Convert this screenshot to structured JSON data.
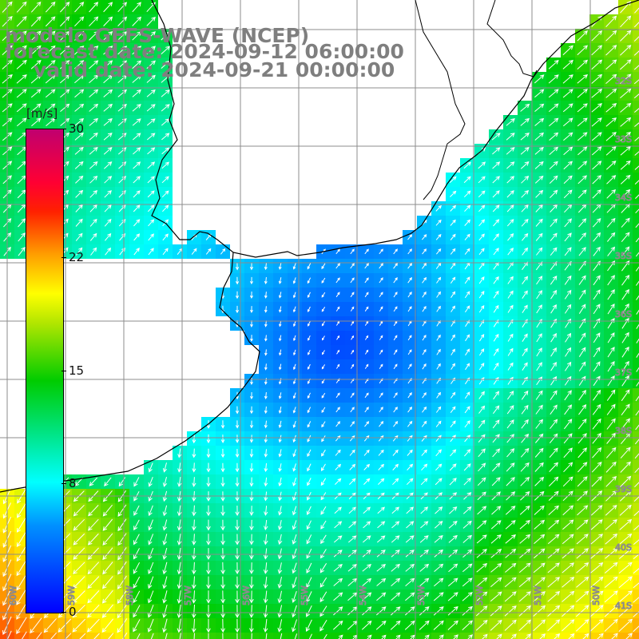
{
  "header": {
    "line1": "modelo GEFS-WAVE (NCEP)",
    "line2": "forecast date: 2024-09-12 06:00:00",
    "line3": "valid date: 2024-09-21 00:00:00"
  },
  "colorbar": {
    "unit": "[m/s]",
    "ticks": [
      "30",
      "22",
      "15",
      "8",
      "0"
    ],
    "tick_values": [
      30,
      22,
      15,
      8,
      0
    ]
  },
  "axes": {
    "lon_labels": [
      "60W",
      "59W",
      "58W",
      "57W",
      "56W",
      "55W",
      "54W",
      "53W",
      "52W",
      "51W",
      "50W"
    ],
    "lat_labels": [
      "32S",
      "33S",
      "34S",
      "35S",
      "36S",
      "37S",
      "38S",
      "39S",
      "40S",
      "41S"
    ]
  },
  "colors": {
    "land": "#ffffff",
    "grid": "#8c8c8c",
    "coast": "#000000",
    "vectors": "#ffffff",
    "title": "#7f7f7f",
    "palette": [
      "#0000ff",
      "#0090ff",
      "#00ffff",
      "#00e27a",
      "#00cc00",
      "#b3e600",
      "#ffff00",
      "#ffa000",
      "#ff2000",
      "#c0006f"
    ]
  },
  "field": {
    "variable": "wind speed",
    "range_ms": [
      0,
      30
    ],
    "arrows": "wind direction vectors"
  }
}
